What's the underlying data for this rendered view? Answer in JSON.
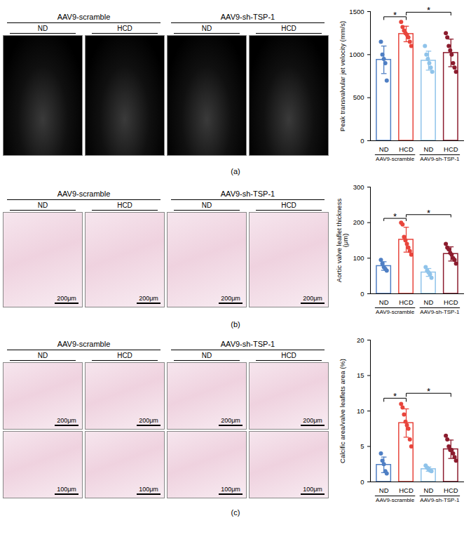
{
  "figure": {
    "panels": [
      {
        "label": "(a)",
        "image_groups": [
          "AAV9-scramble",
          "AAV9-sh-TSP-1"
        ],
        "image_columns": [
          "ND",
          "HCD",
          "ND",
          "HCD"
        ],
        "scale_bars": []
      },
      {
        "label": "(b)",
        "image_groups": [
          "AAV9-scramble",
          "AAV9-sh-TSP-1"
        ],
        "image_columns": [
          "ND",
          "HCD",
          "ND",
          "HCD"
        ],
        "scale_bars": [
          [
            "200μm",
            "200μm",
            "200μm",
            "200μm"
          ]
        ]
      },
      {
        "label": "(c)",
        "image_groups": [
          "AAV9-scramble",
          "AAV9-sh-TSP-1"
        ],
        "image_columns": [
          "ND",
          "HCD",
          "ND",
          "HCD"
        ],
        "scale_bars": [
          [
            "200μm",
            "200μm",
            "200μm",
            "200μm"
          ],
          [
            "100μm",
            "100μm",
            "100μm",
            "100μm"
          ]
        ]
      }
    ]
  },
  "chart_data": [
    {
      "type": "bar",
      "y_label": "Peak transvalvular jet velocity (mm/s)",
      "categories": [
        "ND",
        "HCD",
        "ND",
        "HCD"
      ],
      "group_labels": [
        "AAV9-scramble",
        "AAV9-sh-TSP-1"
      ],
      "colors": [
        "#4f7fc4",
        "#e8453c",
        "#8fc3ea",
        "#8c1c2e"
      ],
      "values": [
        940,
        1240,
        930,
        1020
      ],
      "errors": [
        160,
        90,
        110,
        160
      ],
      "points": [
        [
          1150,
          1000,
          950,
          900,
          700
        ],
        [
          1380,
          1320,
          1280,
          1250,
          1230,
          1200,
          1150,
          1100
        ],
        [
          1100,
          1000,
          950,
          900,
          850,
          800
        ],
        [
          1250,
          1200,
          1100,
          1050,
          1000,
          900,
          850,
          800
        ]
      ],
      "significance": [
        {
          "from": 0,
          "to": 1,
          "label": "*"
        },
        {
          "from": 1,
          "to": 3,
          "label": "*"
        }
      ],
      "ylim": [
        0,
        1500
      ],
      "yticks": [
        0,
        500,
        1000,
        1500
      ]
    },
    {
      "type": "bar",
      "y_label": "Aortic valve leaflet thickness (μm)",
      "categories": [
        "ND",
        "HCD",
        "ND",
        "HCD"
      ],
      "group_labels": [
        "AAV9-scramble",
        "AAV9-sh-TSP-1"
      ],
      "colors": [
        "#4f7fc4",
        "#e8453c",
        "#8fc3ea",
        "#8c1c2e"
      ],
      "values": [
        78,
        152,
        60,
        112
      ],
      "errors": [
        12,
        35,
        11,
        20
      ],
      "points": [
        [
          95,
          85,
          75,
          70,
          65
        ],
        [
          200,
          195,
          160,
          150,
          140,
          130,
          120,
          110
        ],
        [
          75,
          65,
          60,
          55,
          45
        ],
        [
          140,
          130,
          125,
          115,
          110,
          100,
          95,
          85
        ]
      ],
      "significance": [
        {
          "from": 0,
          "to": 1,
          "label": "*"
        },
        {
          "from": 1,
          "to": 3,
          "label": "*"
        }
      ],
      "ylim": [
        0,
        300
      ],
      "yticks": [
        0,
        100,
        200,
        300
      ]
    },
    {
      "type": "bar",
      "y_label": "Calcific area/valve leaflets area (%)",
      "categories": [
        "ND",
        "HCD",
        "ND",
        "HCD"
      ],
      "group_labels": [
        "AAV9-scramble",
        "AAV9-sh-TSP-1"
      ],
      "colors": [
        "#4f7fc4",
        "#e8453c",
        "#8fc3ea",
        "#8c1c2e"
      ],
      "values": [
        2.4,
        8.3,
        1.8,
        4.6
      ],
      "errors": [
        1.1,
        2,
        0.3,
        1.3
      ],
      "points": [
        [
          4,
          3,
          2.5,
          1.5,
          1.2
        ],
        [
          11,
          10.5,
          9.5,
          8.5,
          8,
          7.5,
          6,
          5
        ],
        [
          2.3,
          2,
          1.8,
          1.6,
          1.5
        ],
        [
          6.5,
          6,
          5,
          4.5,
          4.5,
          4,
          3.5,
          3
        ]
      ],
      "significance": [
        {
          "from": 0,
          "to": 1,
          "label": "*"
        },
        {
          "from": 1,
          "to": 3,
          "label": "*"
        }
      ],
      "ylim": [
        0,
        20
      ],
      "yticks": [
        0,
        5,
        10,
        15,
        20
      ]
    }
  ]
}
